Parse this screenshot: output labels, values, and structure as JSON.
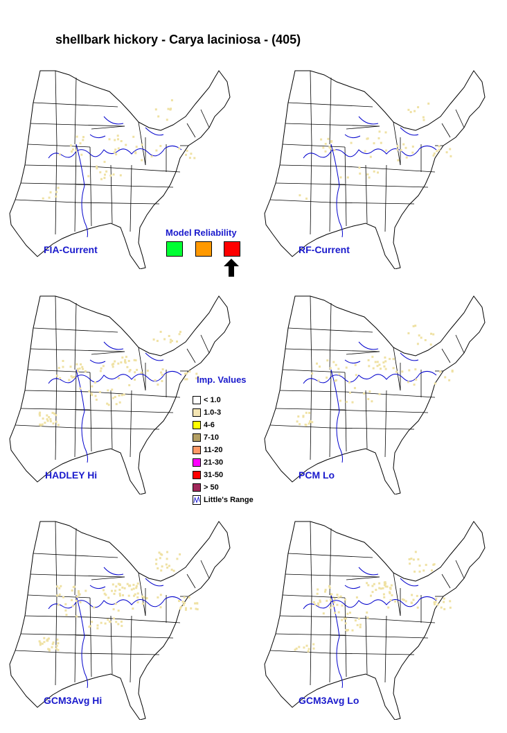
{
  "title": "shellbark hickory - Carya laciniosa - (405)",
  "maps": [
    {
      "label": "FIA-Current"
    },
    {
      "label": "RF-Current"
    },
    {
      "label": "HADLEY Hi"
    },
    {
      "label": "PCM Lo"
    },
    {
      "label": "GCM3Avg Hi"
    },
    {
      "label": "GCM3Avg Lo"
    }
  ],
  "reliability": {
    "title": "Model Reliability",
    "levels": [
      {
        "color": "#00ff33"
      },
      {
        "color": "#ff9900"
      },
      {
        "color": "#ff0000",
        "selected": true
      }
    ]
  },
  "legend": {
    "title": "Imp. Values",
    "items": [
      {
        "label": "< 1.0",
        "color": "#ffffff"
      },
      {
        "label": "1.0-3",
        "color": "#f5e6b4"
      },
      {
        "label": "4-6",
        "color": "#ffff00"
      },
      {
        "label": "7-10",
        "color": "#b4a064"
      },
      {
        "label": "11-20",
        "color": "#ff9966"
      },
      {
        "label": "21-30",
        "color": "#ff00ff"
      },
      {
        "label": "31-50",
        "color": "#ff0000"
      },
      {
        "label": "> 50",
        "color": "#a0285a"
      }
    ],
    "range_label": "Little's Range"
  },
  "colors": {
    "range_line": "#0000cc",
    "presence": "#efe1a3",
    "label": "#1a1acc"
  }
}
